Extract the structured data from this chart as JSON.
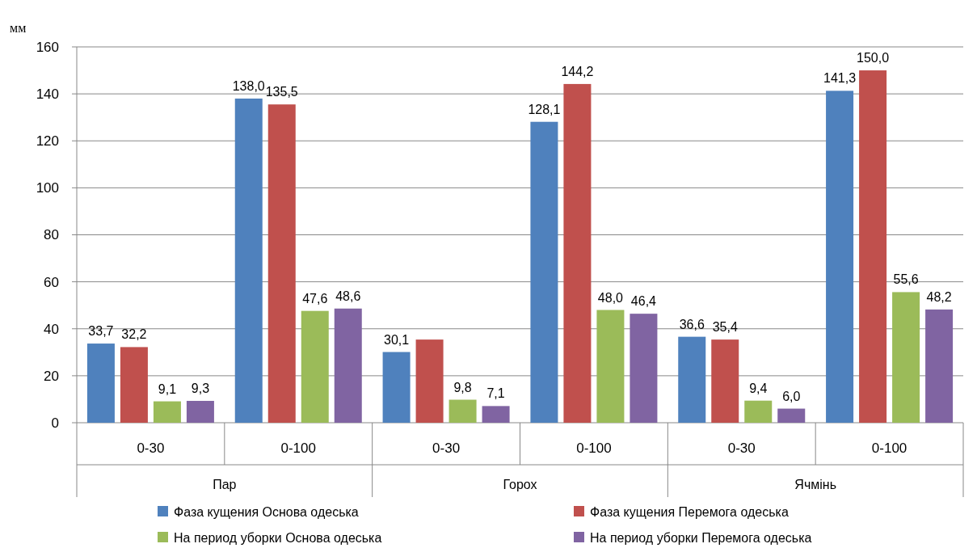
{
  "chart_data": {
    "type": "bar",
    "ylabel": "мм",
    "categories": [
      "0-30",
      "0-100",
      "0-30",
      "0-100",
      "0-30",
      "0-100"
    ],
    "series": [
      {
        "name": "Фаза кущения Основа одеська",
        "color": "#4f81bd",
        "values": [
          33.7,
          138.0,
          30.1,
          128.1,
          36.6,
          141.3
        ],
        "value_labels": [
          "33,7",
          "138,0",
          "30,1",
          "128,1",
          "36,6",
          "141,3"
        ]
      },
      {
        "name": "Фаза кущения Перемога одеська",
        "color": "#c0504d",
        "values": [
          32.2,
          135.5,
          35.4,
          144.2,
          35.4,
          150.0
        ],
        "value_labels": [
          "32,2",
          "135,5",
          null,
          "144,2",
          "35,4",
          "150,0"
        ]
      },
      {
        "name": "На период уборки Основа одеська",
        "color": "#9bbb59",
        "values": [
          9.1,
          47.6,
          9.8,
          48.0,
          9.4,
          55.6
        ],
        "value_labels": [
          "9,1",
          "47,6",
          "9,8",
          "48,0",
          "9,4",
          "55,6"
        ]
      },
      {
        "name": "На период уборки Перемога одеська",
        "color": "#8064a2",
        "values": [
          9.3,
          48.6,
          7.1,
          46.4,
          6.0,
          48.2
        ],
        "value_labels": [
          "9,3",
          "48,6",
          "7,1",
          "46,4",
          "6,0",
          "48,2"
        ]
      }
    ],
    "annotations": [
      "Пар",
      "Горох",
      "Ячмінь"
    ],
    "ylim": [
      0,
      160
    ],
    "yticks": [
      0,
      20,
      40,
      60,
      80,
      100,
      120,
      140,
      160
    ],
    "grid": "y",
    "legend": "bottom"
  }
}
